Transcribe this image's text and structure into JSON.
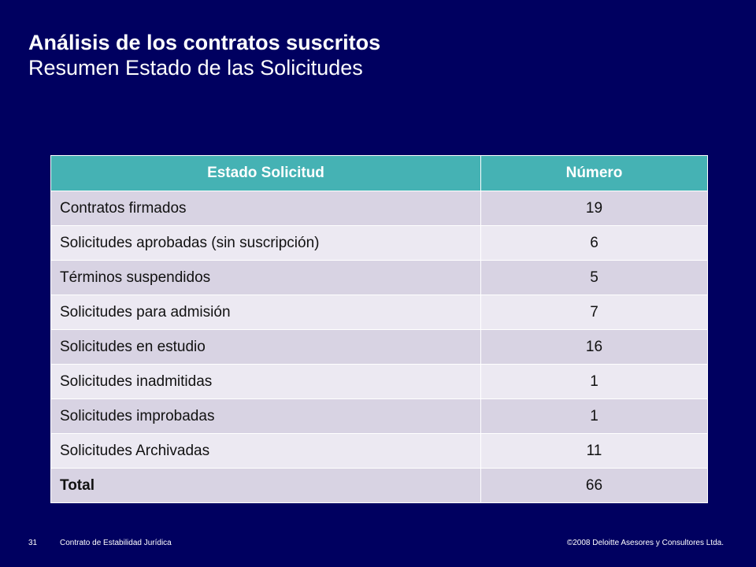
{
  "slide": {
    "title": "Análisis de los contratos suscritos",
    "subtitle": "Resumen Estado de las Solicitudes"
  },
  "table": {
    "headers": [
      "Estado Solicitud",
      "Número"
    ],
    "rows": [
      {
        "label": "Contratos firmados",
        "value": "19"
      },
      {
        "label": "Solicitudes aprobadas (sin suscripción)",
        "value": "6"
      },
      {
        "label": "Términos suspendidos",
        "value": "5"
      },
      {
        "label": "Solicitudes para admisión",
        "value": "7"
      },
      {
        "label": "Solicitudes en estudio",
        "value": "16"
      },
      {
        "label": "Solicitudes inadmitidas",
        "value": "1"
      },
      {
        "label": "Solicitudes improbadas",
        "value": "1"
      },
      {
        "label": "Solicitudes Archivadas",
        "value": "11"
      }
    ],
    "total": {
      "label": "Total",
      "value": "66"
    }
  },
  "footer": {
    "page_number": "31",
    "document_name": "Contrato de Estabilidad Jurídica",
    "copyright": "©2008 Deloitte Asesores y Consultores Ltda."
  },
  "colors": {
    "background": "#000060",
    "header_fill": "#45b2b4",
    "row_odd": "#d8d3e3",
    "row_even": "#ece9f2"
  }
}
